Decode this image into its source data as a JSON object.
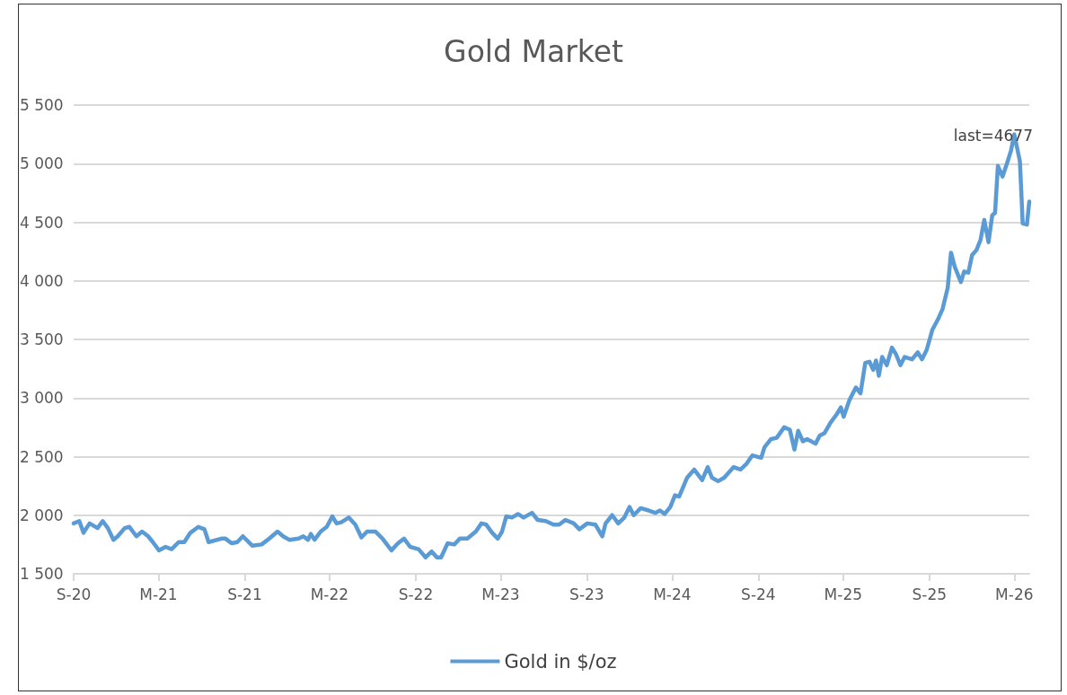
{
  "chart_data": {
    "type": "line",
    "title": "Gold Market",
    "x": [
      "2020-09-01",
      "2020-09-13",
      "2020-09-22",
      "2020-10-05",
      "2020-10-22",
      "2020-11-02",
      "2020-11-13",
      "2020-11-25",
      "2020-12-04",
      "2020-12-19",
      "2020-12-29",
      "2021-01-13",
      "2021-01-25",
      "2021-02-07",
      "2021-02-17",
      "2021-03-02",
      "2021-03-16",
      "2021-03-29",
      "2021-04-13",
      "2021-04-25",
      "2021-05-08",
      "2021-05-25",
      "2021-06-07",
      "2021-06-16",
      "2021-07-13",
      "2021-07-22",
      "2021-08-04",
      "2021-08-16",
      "2021-08-28",
      "2021-09-17",
      "2021-10-07",
      "2021-10-20",
      "2021-11-10",
      "2021-11-22",
      "2021-12-05",
      "2021-12-25",
      "2022-01-04",
      "2022-01-14",
      "2022-01-20",
      "2022-01-28",
      "2022-02-10",
      "2022-02-23",
      "2022-03-07",
      "2022-03-16",
      "2022-03-26",
      "2022-04-11",
      "2022-04-25",
      "2022-05-08",
      "2022-05-20",
      "2022-06-07",
      "2022-06-22",
      "2022-07-11",
      "2022-07-25",
      "2022-08-07",
      "2022-08-20",
      "2022-09-07",
      "2022-09-22",
      "2022-10-05",
      "2022-10-16",
      "2022-10-25",
      "2022-11-08",
      "2022-11-22",
      "2022-12-04",
      "2022-12-20",
      "2023-01-07",
      "2023-01-19",
      "2023-01-29",
      "2023-02-11",
      "2023-02-23",
      "2023-03-04",
      "2023-03-13",
      "2023-03-25",
      "2023-04-07",
      "2023-04-19",
      "2023-05-07",
      "2023-05-19",
      "2023-06-05",
      "2023-06-22",
      "2023-07-04",
      "2023-07-17",
      "2023-08-04",
      "2023-08-16",
      "2023-09-02",
      "2023-09-19",
      "2023-10-04",
      "2023-10-11",
      "2023-10-25",
      "2023-11-07",
      "2023-11-20",
      "2023-12-01",
      "2023-12-10",
      "2023-12-25",
      "2024-01-11",
      "2024-01-25",
      "2024-02-04",
      "2024-02-14",
      "2024-02-26",
      "2024-03-07",
      "2024-03-16",
      "2024-04-02",
      "2024-04-17",
      "2024-05-04",
      "2024-05-16",
      "2024-05-25",
      "2024-06-07",
      "2024-06-20",
      "2024-07-10",
      "2024-07-25",
      "2024-08-07",
      "2024-08-19",
      "2024-09-07",
      "2024-09-14",
      "2024-09-28",
      "2024-10-10",
      "2024-10-26",
      "2024-11-07",
      "2024-11-17",
      "2024-11-25",
      "2024-12-05",
      "2024-12-14",
      "2025-01-01",
      "2025-01-10",
      "2025-01-20",
      "2025-02-02",
      "2025-02-15",
      "2025-02-24",
      "2025-03-02",
      "2025-03-14",
      "2025-03-28",
      "2025-04-07",
      "2025-04-17",
      "2025-04-26",
      "2025-05-04",
      "2025-05-10",
      "2025-05-16",
      "2025-05-23",
      "2025-06-02",
      "2025-06-13",
      "2025-06-22",
      "2025-07-01",
      "2025-07-10",
      "2025-07-26",
      "2025-08-07",
      "2025-08-16",
      "2025-08-26",
      "2025-09-07",
      "2025-09-19",
      "2025-09-29",
      "2025-10-10",
      "2025-10-17",
      "2025-10-25",
      "2025-11-07",
      "2025-11-14",
      "2025-11-23",
      "2025-12-01",
      "2025-12-10",
      "2025-12-19",
      "2025-12-27",
      "2026-01-05",
      "2026-01-13",
      "2026-01-19",
      "2026-01-25",
      "2026-02-04",
      "2026-02-14",
      "2026-02-22",
      "2026-03-01",
      "2026-03-13",
      "2026-03-19",
      "2026-03-28",
      "2026-04-02"
    ],
    "series": [
      {
        "name": "Gold in $/oz",
        "color": "#5b9bd5",
        "values": [
          1930,
          1950,
          1850,
          1930,
          1890,
          1950,
          1890,
          1790,
          1820,
          1890,
          1900,
          1820,
          1860,
          1820,
          1770,
          1700,
          1730,
          1710,
          1770,
          1770,
          1850,
          1900,
          1880,
          1770,
          1800,
          1800,
          1760,
          1770,
          1820,
          1740,
          1750,
          1790,
          1860,
          1820,
          1790,
          1800,
          1820,
          1790,
          1840,
          1790,
          1860,
          1900,
          1990,
          1930,
          1940,
          1980,
          1920,
          1810,
          1860,
          1860,
          1800,
          1700,
          1760,
          1800,
          1730,
          1710,
          1640,
          1690,
          1640,
          1640,
          1760,
          1750,
          1800,
          1800,
          1860,
          1930,
          1920,
          1850,
          1800,
          1860,
          1990,
          1980,
          2010,
          1980,
          2020,
          1960,
          1950,
          1920,
          1920,
          1960,
          1930,
          1880,
          1930,
          1920,
          1820,
          1930,
          2000,
          1930,
          1980,
          2070,
          2000,
          2060,
          2040,
          2020,
          2040,
          2010,
          2070,
          2170,
          2160,
          2320,
          2390,
          2300,
          2410,
          2320,
          2290,
          2320,
          2410,
          2390,
          2440,
          2510,
          2490,
          2580,
          2650,
          2660,
          2750,
          2730,
          2560,
          2720,
          2630,
          2650,
          2610,
          2680,
          2700,
          2790,
          2860,
          2920,
          2840,
          2980,
          3090,
          3040,
          3300,
          3310,
          3240,
          3320,
          3190,
          3350,
          3280,
          3430,
          3370,
          3280,
          3350,
          3330,
          3390,
          3330,
          3410,
          3580,
          3670,
          3760,
          3940,
          4240,
          4120,
          3990,
          4080,
          4070,
          4220,
          4260,
          4350,
          4520,
          4330,
          4560,
          4580,
          4980,
          4890,
          5010,
          5110,
          5250,
          5020,
          4490,
          4480,
          4677
        ]
      }
    ],
    "xlim": [
      "2020-09-01",
      "2026-04-02"
    ],
    "xticks": [
      {
        "value": "2020-09-01",
        "label": "S-20"
      },
      {
        "value": "2021-03-01",
        "label": "M-21"
      },
      {
        "value": "2021-09-01",
        "label": "S-21"
      },
      {
        "value": "2022-03-01",
        "label": "M-22"
      },
      {
        "value": "2022-09-01",
        "label": "S-22"
      },
      {
        "value": "2023-03-01",
        "label": "M-23"
      },
      {
        "value": "2023-09-01",
        "label": "S-23"
      },
      {
        "value": "2024-03-01",
        "label": "M-24"
      },
      {
        "value": "2024-09-01",
        "label": "S-24"
      },
      {
        "value": "2025-03-01",
        "label": "M-25"
      },
      {
        "value": "2025-09-01",
        "label": "S-25"
      },
      {
        "value": "2026-03-01",
        "label": "M-26"
      }
    ],
    "ylim": [
      1500,
      5500
    ],
    "yticks": [
      {
        "value": 1500,
        "label": "1 500"
      },
      {
        "value": 2000,
        "label": "2 000"
      },
      {
        "value": 2500,
        "label": "2 500"
      },
      {
        "value": 3000,
        "label": "3 000"
      },
      {
        "value": 3500,
        "label": "3 500"
      },
      {
        "value": 4000,
        "label": "4 000"
      },
      {
        "value": 4500,
        "label": "4 500"
      },
      {
        "value": 5000,
        "label": "5 000"
      },
      {
        "value": 5500,
        "label": "5 500"
      }
    ],
    "annotations": [
      "last=4677"
    ],
    "grid": "y",
    "legend": "bottom",
    "marker": "none",
    "line_style": "solid"
  }
}
